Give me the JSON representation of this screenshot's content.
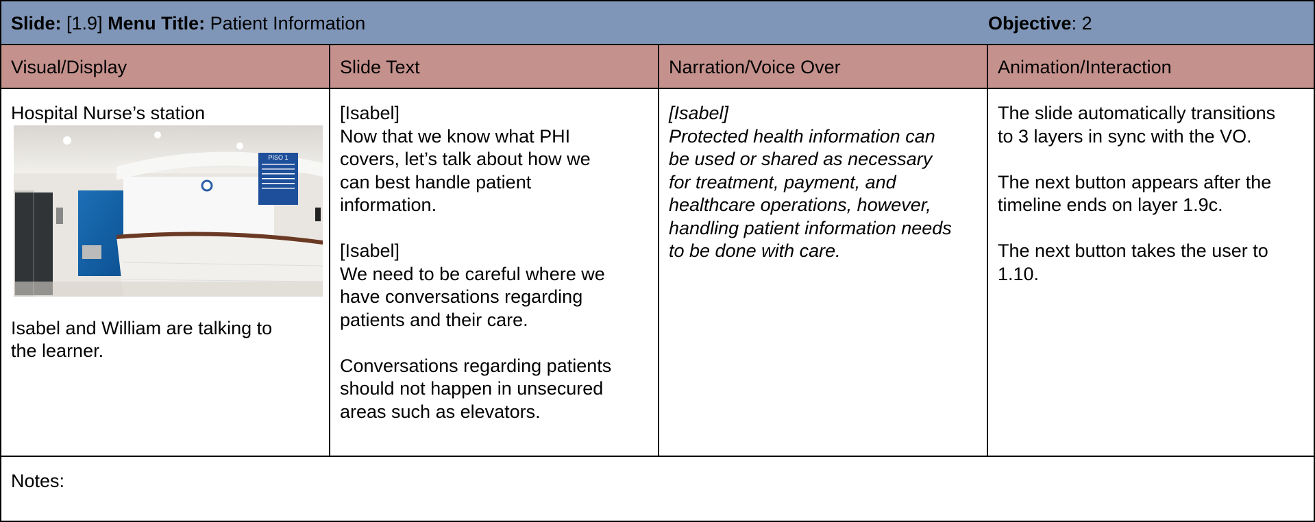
{
  "header": {
    "slide_label": "Slide:",
    "slide": "[1.9]",
    "menu_label": "Menu Title:",
    "menu_title": "Patient Information",
    "objective_label": "Objective",
    "objective": ": 2"
  },
  "columns": [
    "Visual/Display",
    "Slide Text",
    "Narration/Voice Over",
    "Animation/Interaction"
  ],
  "visual": {
    "caption": "Hospital Nurse’s station",
    "image_sign": "PISO 1",
    "description": [
      "Isabel and William are talking to",
      "the learner."
    ]
  },
  "slide_text": [
    [
      "[Isabel]",
      "Now that we know what PHI",
      "covers, let’s talk about how we",
      "can best handle patient",
      "information."
    ],
    [
      "[Isabel]",
      "We need to be careful where we",
      "have conversations regarding",
      "patients and their care."
    ],
    [
      "Conversations regarding patients",
      "should not happen in unsecured",
      "areas such as elevators."
    ]
  ],
  "narration": [
    [
      "[Isabel]",
      "Protected health information can",
      "be used or shared as necessary",
      "for treatment, payment, and",
      "healthcare operations, however,",
      "handling patient information needs",
      "to be done with care."
    ]
  ],
  "animation": [
    [
      "The slide automatically transitions",
      "to 3 layers in sync with the VO."
    ],
    [
      "The next button appears after the",
      "timeline ends on layer 1.9c."
    ],
    [
      "The next button takes the user to",
      "1.10."
    ]
  ],
  "notes": "Notes:"
}
